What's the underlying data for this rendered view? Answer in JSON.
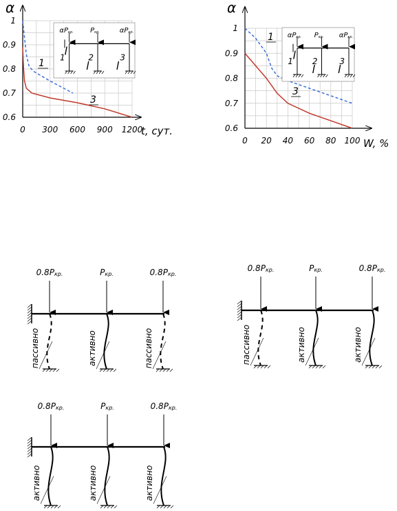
{
  "chart_data": [
    {
      "type": "line",
      "ylabel": "α",
      "xlabel": "t, сут.",
      "xlim": [
        0,
        1200
      ],
      "ylim": [
        0.6,
        1.0
      ],
      "x_ticks": [
        "0",
        "300",
        "600",
        "900",
        "1200"
      ],
      "y_ticks": [
        "0.6",
        "0.7",
        "0.8",
        "0.9",
        "1"
      ],
      "grid": true,
      "series": [
        {
          "name": "1",
          "style": "dashed",
          "color": "#3a6fd8",
          "points": [
            [
              0,
              1.0
            ],
            [
              20,
              0.93
            ],
            [
              40,
              0.86
            ],
            [
              70,
              0.81
            ],
            [
              120,
              0.79
            ],
            [
              300,
              0.75
            ],
            [
              500,
              0.71
            ],
            [
              550,
              0.7
            ]
          ]
        },
        {
          "name": "3",
          "style": "solid",
          "color": "#c0392b",
          "points": [
            [
              0,
              0.89
            ],
            [
              10,
              0.8
            ],
            [
              20,
              0.75
            ],
            [
              40,
              0.72
            ],
            [
              100,
              0.7
            ],
            [
              300,
              0.68
            ],
            [
              600,
              0.66
            ],
            [
              900,
              0.635
            ],
            [
              1200,
              0.6
            ]
          ]
        }
      ],
      "inset": {
        "loads": [
          "αP",
          "P",
          "αP"
        ],
        "load_subscript": "кр.",
        "span_label": "l",
        "column_labels": [
          "1",
          "2",
          "3"
        ]
      }
    },
    {
      "type": "line",
      "ylabel": "α",
      "xlabel": "W, %",
      "xlim": [
        0,
        100
      ],
      "ylim": [
        0.6,
        1.0
      ],
      "x_ticks": [
        "0",
        "20",
        "40",
        "60",
        "80",
        "100"
      ],
      "y_ticks": [
        "0.6",
        "0.7",
        "0.8",
        "0.9",
        "1"
      ],
      "grid": true,
      "series": [
        {
          "name": "1",
          "style": "dashed",
          "color": "#3a6fd8",
          "points": [
            [
              0,
              1.0
            ],
            [
              10,
              0.96
            ],
            [
              20,
              0.9
            ],
            [
              25,
              0.84
            ],
            [
              30,
              0.81
            ],
            [
              40,
              0.79
            ],
            [
              60,
              0.76
            ],
            [
              80,
              0.73
            ],
            [
              100,
              0.7
            ]
          ]
        },
        {
          "name": "3",
          "style": "solid",
          "color": "#c0392b",
          "points": [
            [
              0,
              0.9
            ],
            [
              10,
              0.85
            ],
            [
              20,
              0.8
            ],
            [
              30,
              0.74
            ],
            [
              40,
              0.7
            ],
            [
              60,
              0.66
            ],
            [
              80,
              0.63
            ],
            [
              100,
              0.6
            ]
          ]
        }
      ],
      "inset": {
        "loads": [
          "αP",
          "P",
          "αP"
        ],
        "load_subscript": "кр.",
        "span_label": "l",
        "column_labels": [
          "1",
          "2",
          "3"
        ]
      }
    }
  ],
  "frames": [
    {
      "loads": [
        "0.8P",
        "P",
        "0.8P"
      ],
      "load_subscript": "кр.",
      "columns": [
        "пассивно",
        "активно",
        "пассивно"
      ],
      "dashed": [
        true,
        false,
        true
      ]
    },
    {
      "loads": [
        "0.8P",
        "P",
        "0.8P"
      ],
      "load_subscript": "кр.",
      "columns": [
        "пассивно",
        "активно",
        "активно"
      ],
      "dashed": [
        true,
        false,
        false
      ]
    },
    {
      "loads": [
        "0.8P",
        "P",
        "0.8P"
      ],
      "load_subscript": "кр.",
      "columns": [
        "активно",
        "активно",
        "активно"
      ],
      "dashed": [
        false,
        false,
        false
      ]
    }
  ]
}
